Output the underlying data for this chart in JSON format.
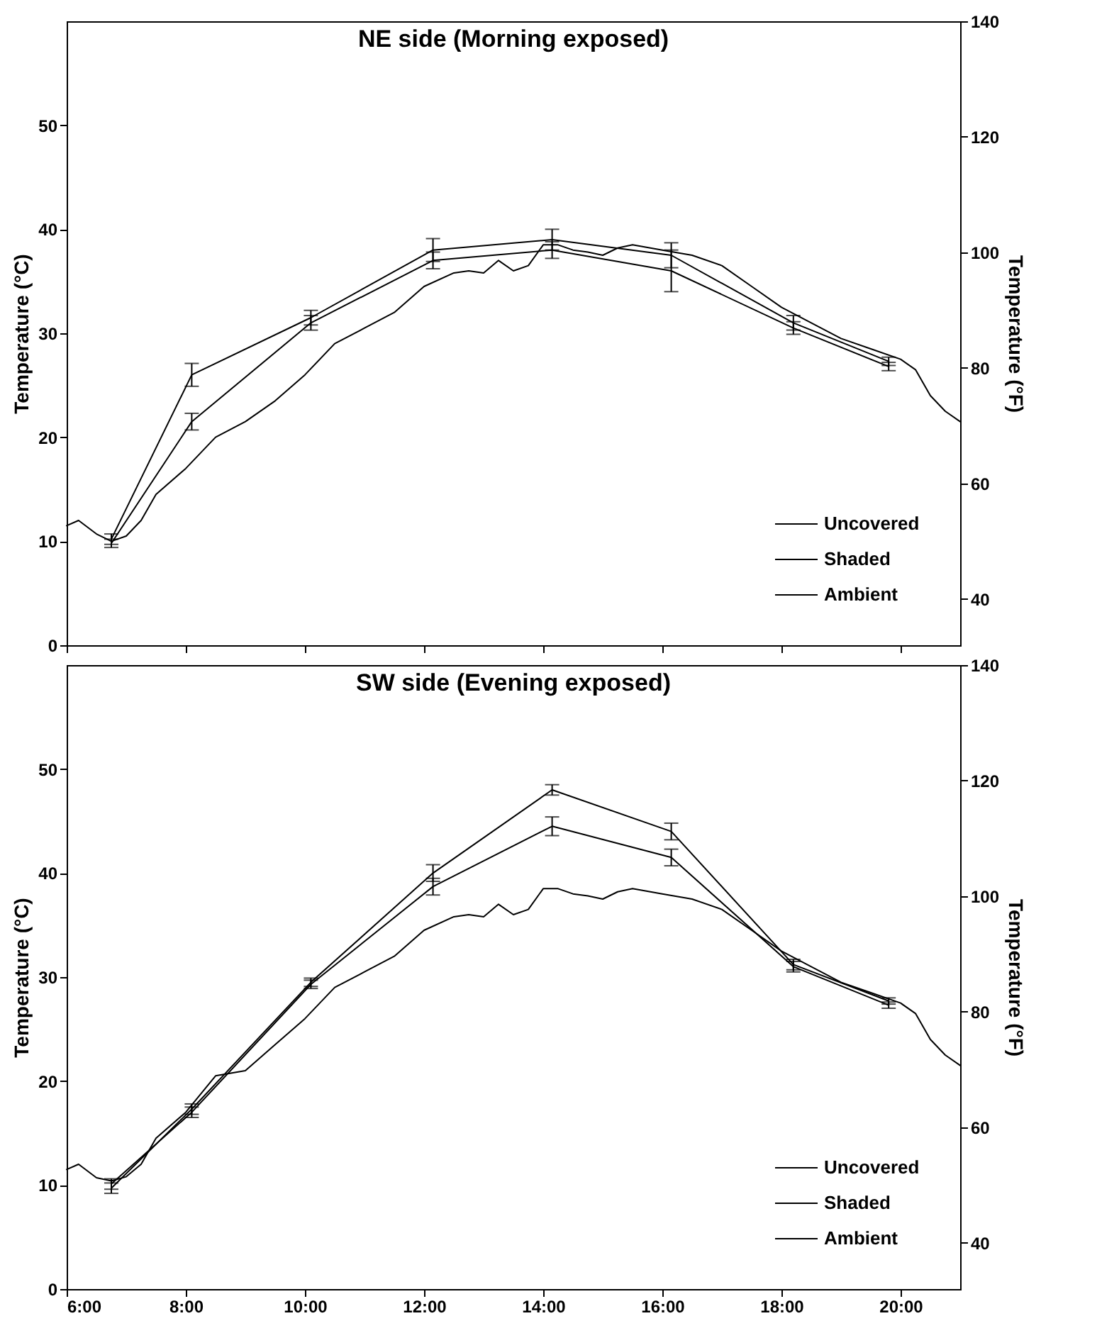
{
  "chart_data": [
    {
      "type": "line",
      "title": "NE side (Morning exposed)",
      "ylabel": "Temperature (°C)",
      "y2label": "Temperature (°F)",
      "xlim": [
        6,
        21
      ],
      "xticks": [
        {
          "value": 6,
          "label": null
        },
        {
          "value": 8,
          "label": null
        },
        {
          "value": 10,
          "label": null
        },
        {
          "value": 12,
          "label": null
        },
        {
          "value": 14,
          "label": null
        },
        {
          "value": 16,
          "label": null
        },
        {
          "value": 18,
          "label": null
        },
        {
          "value": 20,
          "label": null
        }
      ],
      "ylim": [
        0,
        60
      ],
      "yticks": [
        0,
        10,
        20,
        30,
        40,
        50
      ],
      "y2lim": [
        32,
        140
      ],
      "y2ticks": [
        40,
        60,
        80,
        100,
        120,
        140
      ],
      "tick_labels": "y",
      "legend": "bottom right",
      "x": [
        6.75,
        8.1,
        10.1,
        12.15,
        14.15,
        16.15,
        18.2,
        19.8
      ],
      "series": [
        {
          "name": "Uncovered",
          "color": "#000000",
          "values": [
            10.2,
            26,
            31.5,
            38,
            39,
            37.5,
            31,
            27.3
          ],
          "errors": [
            0.5,
            1.1,
            0.7,
            1.1,
            1,
            1.2,
            0.7,
            0.4
          ]
        },
        {
          "name": "Shaded",
          "color": "#000000",
          "values": [
            9.8,
            21.5,
            31,
            37,
            38,
            36,
            30.5,
            26.8
          ],
          "errors": [
            0.4,
            0.8,
            0.7,
            0.8,
            0.8,
            2,
            0.6,
            0.4
          ]
        },
        {
          "name": "Ambient",
          "color": "#000000",
          "x": [
            6,
            6.2,
            6.5,
            6.75,
            7,
            7.25,
            7.5,
            8,
            8.5,
            9,
            9.5,
            10,
            10.5,
            11,
            11.5,
            12,
            12.5,
            12.75,
            13,
            13.25,
            13.5,
            13.75,
            14,
            14.25,
            14.5,
            14.75,
            15,
            15.25,
            15.5,
            16,
            16.5,
            17,
            17.5,
            18,
            18.5,
            19,
            19.5,
            20,
            20.25,
            20.5,
            20.75,
            21
          ],
          "values": [
            11.5,
            12,
            10.7,
            10,
            10.5,
            12,
            14.5,
            17,
            20,
            21.5,
            23.5,
            26,
            29,
            30.5,
            32,
            34.5,
            35.8,
            36,
            35.8,
            37,
            36,
            36.5,
            38.5,
            38.5,
            38,
            37.8,
            37.5,
            38.2,
            38.5,
            38,
            37.5,
            36.5,
            34.5,
            32.5,
            31,
            29.5,
            28.5,
            27.5,
            26.5,
            24,
            22.5,
            21.5
          ]
        }
      ]
    },
    {
      "type": "line",
      "title": "SW side (Evening exposed)",
      "ylabel": "Temperature (°C)",
      "y2label": "Temperature (°F)",
      "xlim": [
        6,
        21
      ],
      "xticks": [
        {
          "value": 6,
          "label": "6:00"
        },
        {
          "value": 8,
          "label": "8:00"
        },
        {
          "value": 10,
          "label": "10:00"
        },
        {
          "value": 12,
          "label": "12:00"
        },
        {
          "value": 14,
          "label": "14:00"
        },
        {
          "value": 16,
          "label": "16:00"
        },
        {
          "value": 18,
          "label": "18:00"
        },
        {
          "value": 20,
          "label": "20:00"
        }
      ],
      "ylim": [
        0,
        60
      ],
      "yticks": [
        0,
        10,
        20,
        30,
        40,
        50
      ],
      "y2lim": [
        32,
        140
      ],
      "y2ticks": [
        40,
        60,
        80,
        100,
        120,
        140
      ],
      "legend": "bottom right",
      "x": [
        6.75,
        8.1,
        10.1,
        12.15,
        14.15,
        16.15,
        18.2,
        19.8
      ],
      "series": [
        {
          "name": "Uncovered",
          "color": "#000000",
          "values": [
            9.7,
            17.3,
            29.5,
            40,
            48,
            44,
            31.2,
            27.7
          ],
          "errors": [
            0.5,
            0.5,
            0.4,
            0.8,
            0.5,
            0.8,
            0.5,
            0.3
          ]
        },
        {
          "name": "Shaded",
          "color": "#000000",
          "values": [
            10.1,
            17,
            29.3,
            38.7,
            44.5,
            41.5,
            31,
            27.3
          ],
          "errors": [
            0.5,
            0.5,
            0.4,
            0.8,
            0.9,
            0.8,
            0.5,
            0.3
          ]
        },
        {
          "name": "Ambient",
          "color": "#000000",
          "x": [
            6,
            6.2,
            6.5,
            6.75,
            7,
            7.25,
            7.5,
            8,
            8.5,
            9,
            9.5,
            10,
            10.5,
            11,
            11.5,
            12,
            12.5,
            12.75,
            13,
            13.25,
            13.5,
            13.75,
            14,
            14.25,
            14.5,
            14.75,
            15,
            15.25,
            15.5,
            16,
            16.5,
            17,
            17.5,
            18,
            18.5,
            19,
            19.5,
            20,
            20.25,
            20.5,
            20.75,
            21
          ],
          "values": [
            11.5,
            12,
            10.7,
            10.4,
            10.8,
            12,
            14.5,
            17,
            20.5,
            21,
            23.5,
            26,
            29,
            30.5,
            32,
            34.5,
            35.8,
            36,
            35.8,
            37,
            36,
            36.5,
            38.5,
            38.5,
            38,
            37.8,
            37.5,
            38.2,
            38.5,
            38,
            37.5,
            36.5,
            34.5,
            32.5,
            31,
            29.5,
            28.5,
            27.5,
            26.5,
            24,
            22.5,
            21.5
          ]
        }
      ]
    }
  ]
}
